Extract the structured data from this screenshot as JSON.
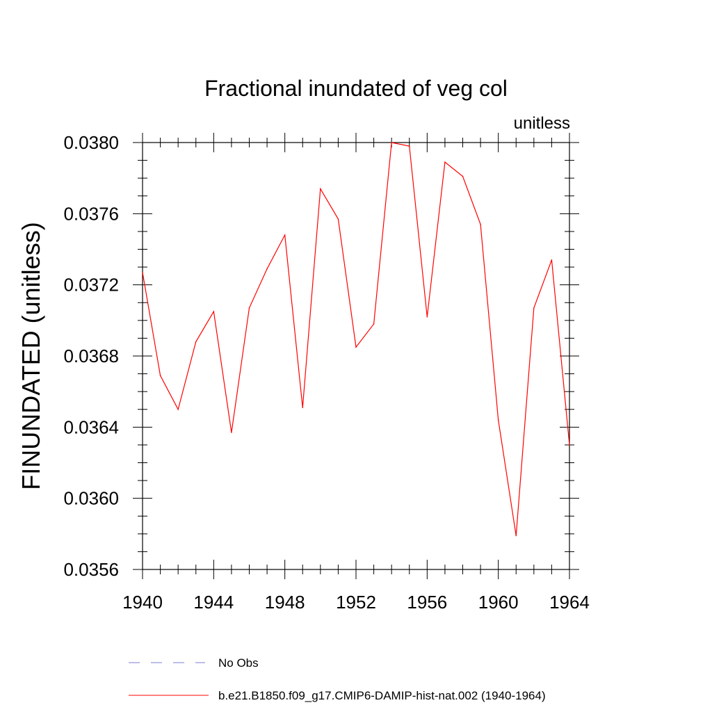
{
  "colors": {
    "background": "#ffffff",
    "axis": "#000000",
    "series_model": "#ff0000",
    "series_obs": "#7b7bd6"
  },
  "chart_data": {
    "type": "line",
    "title": "Fractional inundated of veg col",
    "units": "unitless",
    "xlabel": "",
    "ylabel": "FINUNDATED  (unitless)",
    "xlim": [
      1940,
      1964
    ],
    "ylim": [
      0.0356,
      0.038
    ],
    "x_ticks": [
      "1940",
      "1944",
      "1948",
      "1952",
      "1956",
      "1960",
      "1964"
    ],
    "y_ticks": [
      "0.0356",
      "0.0360",
      "0.0364",
      "0.0368",
      "0.0372",
      "0.0376",
      "0.0380"
    ],
    "grid": false,
    "legend_position": "bottom",
    "series": [
      {
        "name": "No Obs",
        "style": "dashed",
        "color": "#7b7bd6",
        "x": [],
        "values": []
      },
      {
        "name": "b.e21.B1850.f09_g17.CMIP6-DAMIP-hist-nat.002 (1940-1964)",
        "style": "solid",
        "color": "#ff0000",
        "x": [
          1940,
          1941,
          1942,
          1943,
          1944,
          1945,
          1946,
          1947,
          1948,
          1949,
          1950,
          1951,
          1952,
          1953,
          1954,
          1955,
          1956,
          1957,
          1958,
          1959,
          1960,
          1961,
          1962,
          1963,
          1964
        ],
        "values": [
          0.03727,
          0.03669,
          0.0365,
          0.03688,
          0.03705,
          0.03637,
          0.03707,
          0.03729,
          0.03748,
          0.03651,
          0.03774,
          0.03757,
          0.03685,
          0.03698,
          0.038,
          0.03798,
          0.03702,
          0.03789,
          0.03781,
          0.03754,
          0.03644,
          0.03579,
          0.03707,
          0.03734,
          0.0363
        ]
      }
    ]
  }
}
